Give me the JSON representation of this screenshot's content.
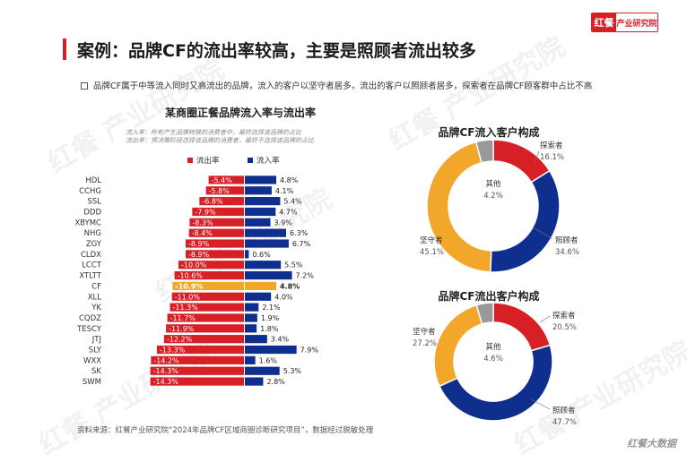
{
  "logo": {
    "icon_text": "红餐",
    "text": "产业研究院"
  },
  "title": "案例：品牌CF的流出率较高，主要是照顾者流出较多",
  "bullet_text": "品牌CF属于中等流入同时又高流出的品牌，流入的客户以坚守者居多，流出的客户以照顾者居多，探索者在品牌CF顾客群中占比不高",
  "bar_chart": {
    "title": "某商圈正餐品牌流入率与流出率",
    "note_line1": "流入率：所有产生品牌转换的消费者中，最终选择该品牌的占比",
    "note_line2": "流出率：预决策阶段选择该品牌的消费者，最终不选择该品牌的占比"
  },
  "source": "资料来源：红餐产业研究院“2024年品牌CF区域商圈诊断研究项目”，数据经过脱敏处理",
  "watermark": "红餐 产业研究院",
  "bottom_logo": "红餐大数据",
  "colors": {
    "outflow": "#d71f26",
    "inflow": "#0f2f8f",
    "highlight": "#f2a72b",
    "other": "#999999"
  },
  "chart_data": [
    {
      "type": "bar",
      "orientation": "horizontal-diverging",
      "title": "某商圈正餐品牌流入率与流出率",
      "categories": [
        "HDL",
        "CCHG",
        "SSL",
        "DDD",
        "XBYMC",
        "NHG",
        "ZGY",
        "CLDX",
        "LCCT",
        "XTLTT",
        "CF",
        "XLL",
        "YK",
        "CQDZ",
        "TESCY",
        "JTJ",
        "SLY",
        "WXX",
        "SK",
        "SWM"
      ],
      "highlight_category": "CF",
      "series": [
        {
          "name": "流出率",
          "labels": [
            "-5.4%",
            "-5.8%",
            "-6.8%",
            "-7.9%",
            "-8.3%",
            "-8.4%",
            "-8.9%",
            "-8.9%",
            "-10.0%",
            "-10.6%",
            "-10.9%",
            "-11.0%",
            "-11.3%",
            "-11.7%",
            "-11.9%",
            "-12.2%",
            "-13.3%",
            "-14.2%",
            "-14.3%",
            "-14.3%"
          ],
          "values": [
            -5.4,
            -5.8,
            -6.8,
            -7.9,
            -8.3,
            -8.4,
            -8.9,
            -8.9,
            -10.0,
            -10.6,
            -10.9,
            -11.0,
            -11.3,
            -11.7,
            -11.9,
            -12.2,
            -13.3,
            -14.2,
            -14.3,
            -14.3
          ]
        },
        {
          "name": "流入率",
          "labels": [
            "4.8%",
            "4.1%",
            "5.4%",
            "4.7%",
            "3.9%",
            "6.3%",
            "6.7%",
            "0.6%",
            "5.5%",
            "7.2%",
            "4.8%",
            "4.0%",
            "2.1%",
            "1.9%",
            "1.8%",
            "3.4%",
            "7.9%",
            "1.6%",
            "5.3%",
            "2.8%"
          ],
          "values": [
            4.8,
            4.1,
            5.4,
            4.7,
            3.9,
            6.3,
            6.7,
            0.6,
            5.5,
            7.2,
            4.8,
            4.0,
            2.1,
            1.9,
            1.8,
            3.4,
            7.9,
            1.6,
            5.3,
            2.8
          ]
        }
      ]
    },
    {
      "type": "pie",
      "style": "donut",
      "title": "品牌CF流入客户构成",
      "slices": [
        {
          "name": "探索者",
          "label": "16.1%",
          "value": 16.1,
          "color": "#d71f26"
        },
        {
          "name": "照顾者",
          "label": "34.6%",
          "value": 34.6,
          "color": "#0f2f8f"
        },
        {
          "name": "坚守者",
          "label": "45.1%",
          "value": 45.1,
          "color": "#f2a72b"
        },
        {
          "name": "其他",
          "label": "4.2%",
          "value": 4.2,
          "color": "#999999"
        }
      ]
    },
    {
      "type": "pie",
      "style": "donut",
      "title": "品牌CF流出客户构成",
      "slices": [
        {
          "name": "探索者",
          "label": "20.5%",
          "value": 20.5,
          "color": "#d71f26"
        },
        {
          "name": "照顾者",
          "label": "47.7%",
          "value": 47.7,
          "color": "#0f2f8f"
        },
        {
          "name": "坚守者",
          "label": "27.2%",
          "value": 27.2,
          "color": "#f2a72b"
        },
        {
          "name": "其他",
          "label": "4.6%",
          "value": 4.6,
          "color": "#999999"
        }
      ]
    }
  ]
}
